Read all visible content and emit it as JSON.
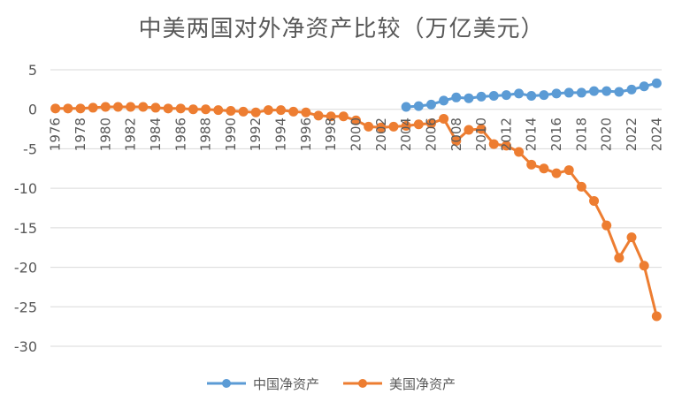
{
  "chart_data": {
    "type": "line",
    "title": "中美两国对外净资产比较（万亿美元）",
    "xlabel": "",
    "ylabel": "",
    "ylim": [
      -30,
      5
    ],
    "yticks": [
      5,
      0,
      -5,
      -10,
      -15,
      -20,
      -25,
      -30
    ],
    "xticks": [
      1976,
      1978,
      1980,
      1982,
      1984,
      1986,
      1988,
      1990,
      1992,
      1994,
      1996,
      1998,
      2000,
      2002,
      2004,
      2006,
      2008,
      2010,
      2012,
      2014,
      2016,
      2018,
      2020,
      2022,
      2024
    ],
    "grid": true,
    "legend_position": "bottom",
    "series": [
      {
        "name": "中国净资产",
        "color": "#5B9BD5",
        "x": [
          2004,
          2005,
          2006,
          2007,
          2008,
          2009,
          2010,
          2011,
          2012,
          2013,
          2014,
          2015,
          2016,
          2017,
          2018,
          2019,
          2020,
          2021,
          2022,
          2023,
          2024
        ],
        "values": [
          0.3,
          0.4,
          0.6,
          1.1,
          1.5,
          1.4,
          1.6,
          1.7,
          1.8,
          2.0,
          1.7,
          1.8,
          2.0,
          2.1,
          2.1,
          2.3,
          2.3,
          2.2,
          2.5,
          2.9,
          3.3
        ]
      },
      {
        "name": "美国净资产",
        "color": "#ED7D31",
        "x": [
          1976,
          1977,
          1978,
          1979,
          1980,
          1981,
          1982,
          1983,
          1984,
          1985,
          1986,
          1987,
          1988,
          1989,
          1990,
          1991,
          1992,
          1993,
          1994,
          1995,
          1996,
          1997,
          1998,
          1999,
          2000,
          2001,
          2002,
          2003,
          2004,
          2005,
          2006,
          2007,
          2008,
          2009,
          2010,
          2011,
          2012,
          2013,
          2014,
          2015,
          2016,
          2017,
          2018,
          2019,
          2020,
          2021,
          2022,
          2023,
          2024
        ],
        "values": [
          0.1,
          0.1,
          0.1,
          0.2,
          0.3,
          0.3,
          0.3,
          0.3,
          0.2,
          0.1,
          0.1,
          0.0,
          0.0,
          -0.1,
          -0.2,
          -0.3,
          -0.4,
          -0.1,
          -0.1,
          -0.3,
          -0.4,
          -0.8,
          -0.9,
          -0.9,
          -1.4,
          -2.2,
          -2.3,
          -2.2,
          -2.1,
          -1.9,
          -1.8,
          -1.2,
          -4.0,
          -2.6,
          -2.5,
          -4.4,
          -4.6,
          -5.4,
          -7.0,
          -7.5,
          -8.1,
          -7.7,
          -9.8,
          -11.6,
          -14.7,
          -18.8,
          -16.2,
          -19.8,
          -26.2
        ]
      }
    ]
  }
}
